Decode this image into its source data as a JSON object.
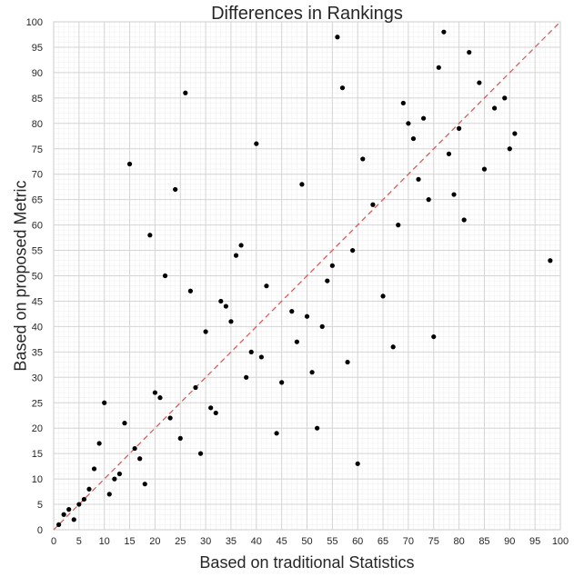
{
  "chart_data": {
    "type": "scatter",
    "title": "Differences in Rankings",
    "xlabel": "Based on traditional Statistics",
    "ylabel": "Based on proposed Metric",
    "xlim": [
      0,
      100
    ],
    "ylim": [
      0,
      100
    ],
    "x_ticks": [
      0,
      5,
      10,
      15,
      20,
      25,
      30,
      35,
      40,
      45,
      50,
      55,
      60,
      65,
      70,
      75,
      80,
      85,
      90,
      95,
      100
    ],
    "y_ticks": [
      0,
      5,
      10,
      15,
      20,
      25,
      30,
      35,
      40,
      45,
      50,
      55,
      60,
      65,
      70,
      75,
      80,
      85,
      90,
      95,
      100
    ],
    "grid": true,
    "minor_grid": true,
    "reference_line": {
      "from": [
        0,
        0
      ],
      "to": [
        100,
        100
      ],
      "style": "dashed",
      "color": "#d9534f"
    },
    "marker_color": "#000000",
    "background": "#ffffff",
    "series": [
      {
        "points": [
          [
            1,
            1
          ],
          [
            2,
            3
          ],
          [
            3,
            4
          ],
          [
            4,
            2
          ],
          [
            5,
            5
          ],
          [
            6,
            6
          ],
          [
            7,
            8
          ],
          [
            8,
            12
          ],
          [
            9,
            17
          ],
          [
            10,
            25
          ],
          [
            11,
            7
          ],
          [
            12,
            10
          ],
          [
            13,
            11
          ],
          [
            14,
            21
          ],
          [
            15,
            72
          ],
          [
            16,
            16
          ],
          [
            17,
            14
          ],
          [
            18,
            9
          ],
          [
            19,
            58
          ],
          [
            20,
            27
          ],
          [
            21,
            26
          ],
          [
            22,
            50
          ],
          [
            23,
            22
          ],
          [
            24,
            67
          ],
          [
            25,
            18
          ],
          [
            26,
            86
          ],
          [
            27,
            47
          ],
          [
            28,
            28
          ],
          [
            29,
            15
          ],
          [
            30,
            39
          ],
          [
            31,
            24
          ],
          [
            32,
            23
          ],
          [
            33,
            45
          ],
          [
            34,
            44
          ],
          [
            35,
            41
          ],
          [
            36,
            54
          ],
          [
            37,
            56
          ],
          [
            38,
            30
          ],
          [
            39,
            35
          ],
          [
            40,
            76
          ],
          [
            41,
            34
          ],
          [
            42,
            48
          ],
          [
            44,
            19
          ],
          [
            45,
            29
          ],
          [
            47,
            43
          ],
          [
            48,
            37
          ],
          [
            49,
            68
          ],
          [
            50,
            42
          ],
          [
            51,
            31
          ],
          [
            52,
            20
          ],
          [
            53,
            40
          ],
          [
            54,
            49
          ],
          [
            55,
            52
          ],
          [
            56,
            97
          ],
          [
            57,
            87
          ],
          [
            58,
            33
          ],
          [
            59,
            55
          ],
          [
            60,
            13
          ],
          [
            61,
            73
          ],
          [
            63,
            64
          ],
          [
            65,
            46
          ],
          [
            67,
            36
          ],
          [
            68,
            60
          ],
          [
            69,
            84
          ],
          [
            70,
            80
          ],
          [
            71,
            77
          ],
          [
            72,
            69
          ],
          [
            73,
            81
          ],
          [
            74,
            65
          ],
          [
            75,
            38
          ],
          [
            76,
            91
          ],
          [
            77,
            98
          ],
          [
            78,
            74
          ],
          [
            79,
            66
          ],
          [
            80,
            79
          ],
          [
            81,
            61
          ],
          [
            82,
            94
          ],
          [
            84,
            88
          ],
          [
            85,
            71
          ],
          [
            87,
            83
          ],
          [
            89,
            85
          ],
          [
            90,
            75
          ],
          [
            91,
            78
          ],
          [
            98,
            53
          ]
        ]
      }
    ]
  }
}
